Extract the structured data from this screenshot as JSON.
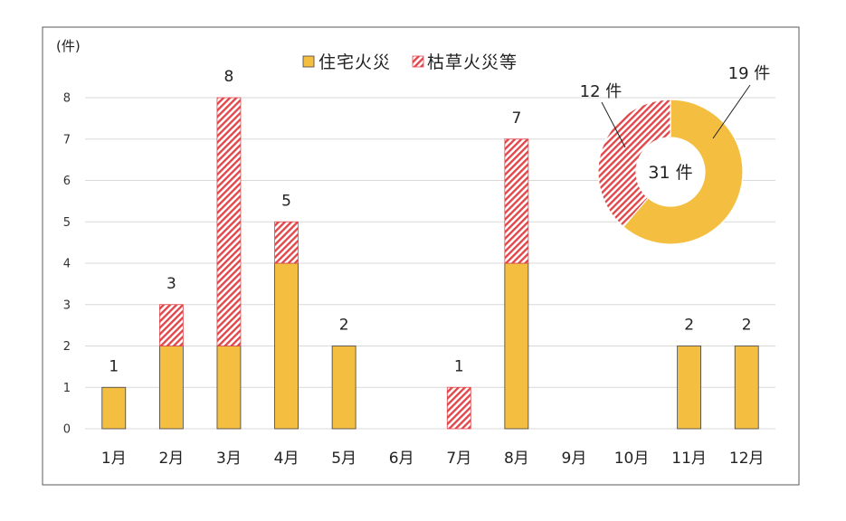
{
  "colors": {
    "residential": "#F4BF41",
    "grass": "#E2474B",
    "gridline": "#D9D9D9",
    "frame": "#595959"
  },
  "chart_data": [
    {
      "type": "bar",
      "stacked": true,
      "ylabel": "(件)",
      "categories": [
        "1月",
        "2月",
        "3月",
        "4月",
        "5月",
        "6月",
        "7月",
        "8月",
        "9月",
        "10月",
        "11月",
        "12月"
      ],
      "series": [
        {
          "name": "住宅火災",
          "values": [
            1,
            2,
            2,
            4,
            2,
            0,
            0,
            4,
            0,
            0,
            2,
            2
          ]
        },
        {
          "name": "枯草火災等",
          "values": [
            0,
            1,
            6,
            1,
            0,
            0,
            1,
            3,
            0,
            0,
            0,
            0
          ]
        }
      ],
      "total_labels": [
        1,
        3,
        8,
        5,
        2,
        null,
        1,
        7,
        null,
        null,
        2,
        2
      ],
      "ylim": [
        0,
        8
      ],
      "yticks": [
        0,
        1,
        2,
        3,
        4,
        5,
        6,
        7,
        8
      ],
      "grid": true,
      "legend": "top-center"
    },
    {
      "type": "pie",
      "donut": true,
      "values": [
        19,
        12
      ],
      "labels": [
        "19 件",
        "12 件"
      ],
      "center_label": "31 件"
    }
  ]
}
